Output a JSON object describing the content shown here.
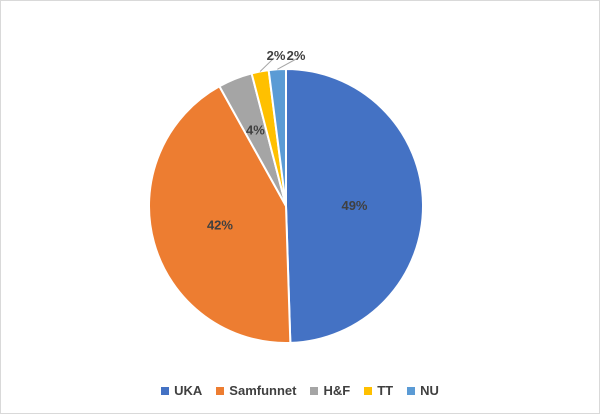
{
  "chart_data": {
    "type": "pie",
    "categories": [
      "UKA",
      "Samfunnet",
      "H&F",
      "TT",
      "NU"
    ],
    "values": [
      49,
      42,
      4,
      2,
      2
    ],
    "data_labels": [
      "49%",
      "42%",
      "4%",
      "2%",
      "2%"
    ],
    "colors": [
      "#4472C4",
      "#ED7D31",
      "#A5A5A5",
      "#FFC000",
      "#5B9BD5"
    ],
    "legend_position": "bottom",
    "title": ""
  }
}
